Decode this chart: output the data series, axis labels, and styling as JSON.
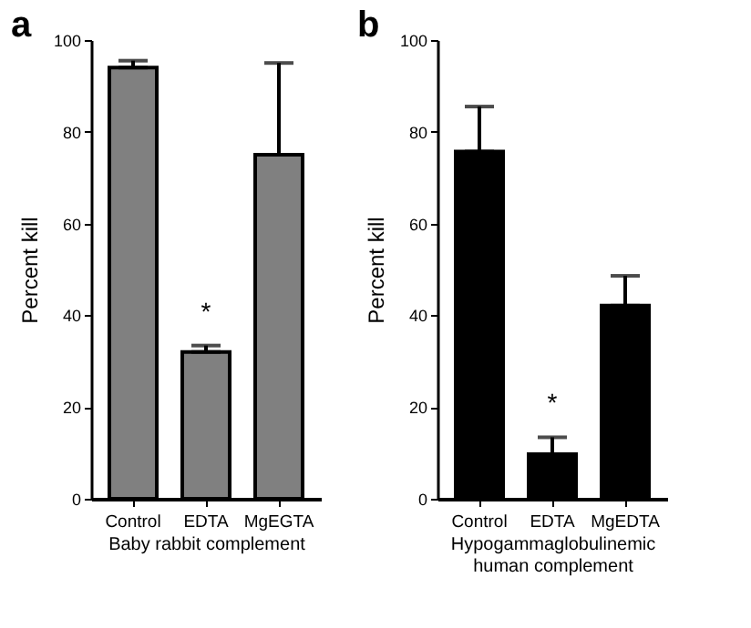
{
  "chart_data": [
    {
      "type": "bar",
      "title": "a",
      "xlabel": "Baby rabbit complement",
      "ylabel": "Percent kill",
      "categories": [
        "Control",
        "EDTA",
        "MgEGTA"
      ],
      "values": [
        94,
        32,
        75
      ],
      "errors": [
        [
          94,
          95.5
        ],
        [
          32,
          33.4
        ],
        [
          75,
          95
        ]
      ],
      "color": "#808080",
      "ylim": [
        0,
        100
      ],
      "yticks": [
        0,
        20,
        40,
        60,
        80,
        100
      ],
      "annotations": [
        {
          "text": "*",
          "x": "EDTA",
          "y": 33.4
        }
      ]
    },
    {
      "type": "bar",
      "title": "b",
      "xlabel": "Hypogammaglobulinemic human complement",
      "ylabel": "Percent kill",
      "categories": [
        "Control",
        "EDTA",
        "MgEDTA"
      ],
      "values": [
        75.7,
        9.7,
        42.1
      ],
      "errors": [
        [
          75.7,
          85.5
        ],
        [
          9.7,
          13.4
        ],
        [
          42.1,
          48.6
        ]
      ],
      "color": "#000000",
      "ylim": [
        0,
        100
      ],
      "yticks": [
        0,
        20,
        40,
        60,
        80,
        100
      ],
      "annotations": [
        {
          "text": "*",
          "x": "EDTA",
          "y": 13.4
        }
      ]
    }
  ]
}
